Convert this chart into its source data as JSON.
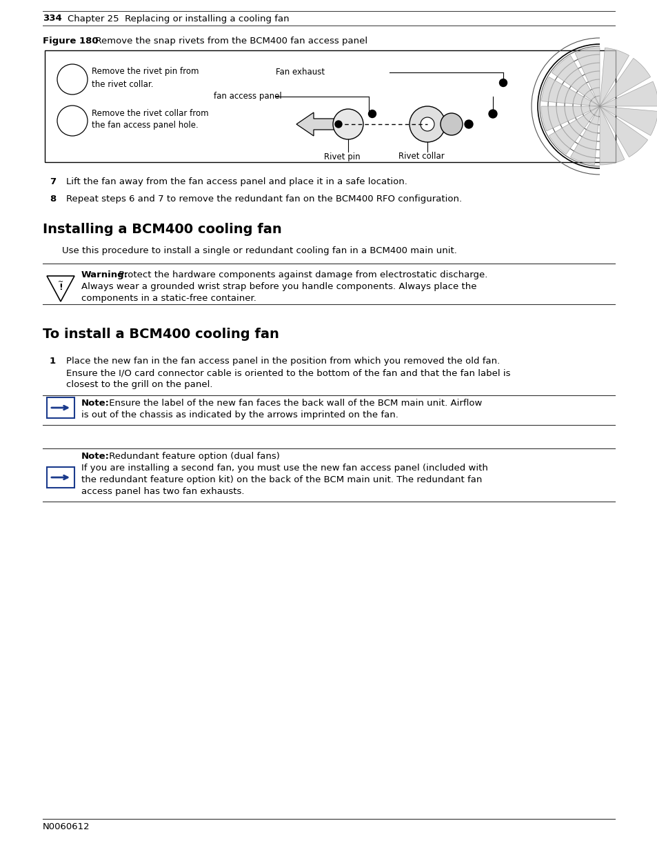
{
  "page_num": "334",
  "chapter_header": "Chapter 25  Replacing or installing a cooling fan",
  "figure_label": "Figure 180",
  "figure_caption": "  Remove the snap rivets from the BCM400 fan access panel",
  "step7": "Lift the fan away from the fan access panel and place it in a safe location.",
  "step8": "Repeat steps 6 and 7 to remove the redundant fan on the BCM400 RFO configuration.",
  "section1_title": "Installing a BCM400 cooling fan",
  "section1_body": "Use this procedure to install a single or redundant cooling fan in a BCM400 main unit.",
  "warning_bold": "Warning:",
  "warning_line1": " Protect the hardware components against damage from electrostatic discharge.",
  "warning_line2": "Always wear a grounded wrist strap before you handle components. Always place the",
  "warning_line3": "components in a static-free container.",
  "section2_title": "To install a BCM400 cooling fan",
  "step1_line1": "Place the new fan in the fan access panel in the position from which you removed the old fan.",
  "step1_line2": "Ensure the I/O card connector cable is oriented to the bottom of the fan and that the fan label is",
  "step1_line3": "closest to the grill on the panel.",
  "note1_bold": "Note:",
  "note1_line1": " Ensure the label of the new fan faces the back wall of the BCM main unit. Airflow",
  "note1_line2": "is out of the chassis as indicated by the arrows imprinted on the fan.",
  "note2_bold": "Note:",
  "note2_line1": " Redundant feature option (dual fans)",
  "note2_line2": "If you are installing a second fan, you must use the new fan access panel (included with",
  "note2_line3": "the redundant feature option kit) on the back of the BCM main unit. The redundant fan",
  "note2_line4": "access panel has two fan exhausts.",
  "footer_text": "N0060612",
  "bg_color": "#ffffff",
  "text_color": "#000000",
  "arrow_color": "#1a3a8c",
  "note_box_color": "#1a3a8c",
  "diag_remove_pin": "Remove the rivet pin from\nthe rivet collar.",
  "diag_remove_collar": "Remove the rivet collar from\nthe fan access panel hole.",
  "diag_fan_exhaust": "Fan exhaust",
  "diag_fan_panel": "fan access panel",
  "diag_rivet_pin": "Rivet pin",
  "diag_rivet_collar": "Rivet collar"
}
